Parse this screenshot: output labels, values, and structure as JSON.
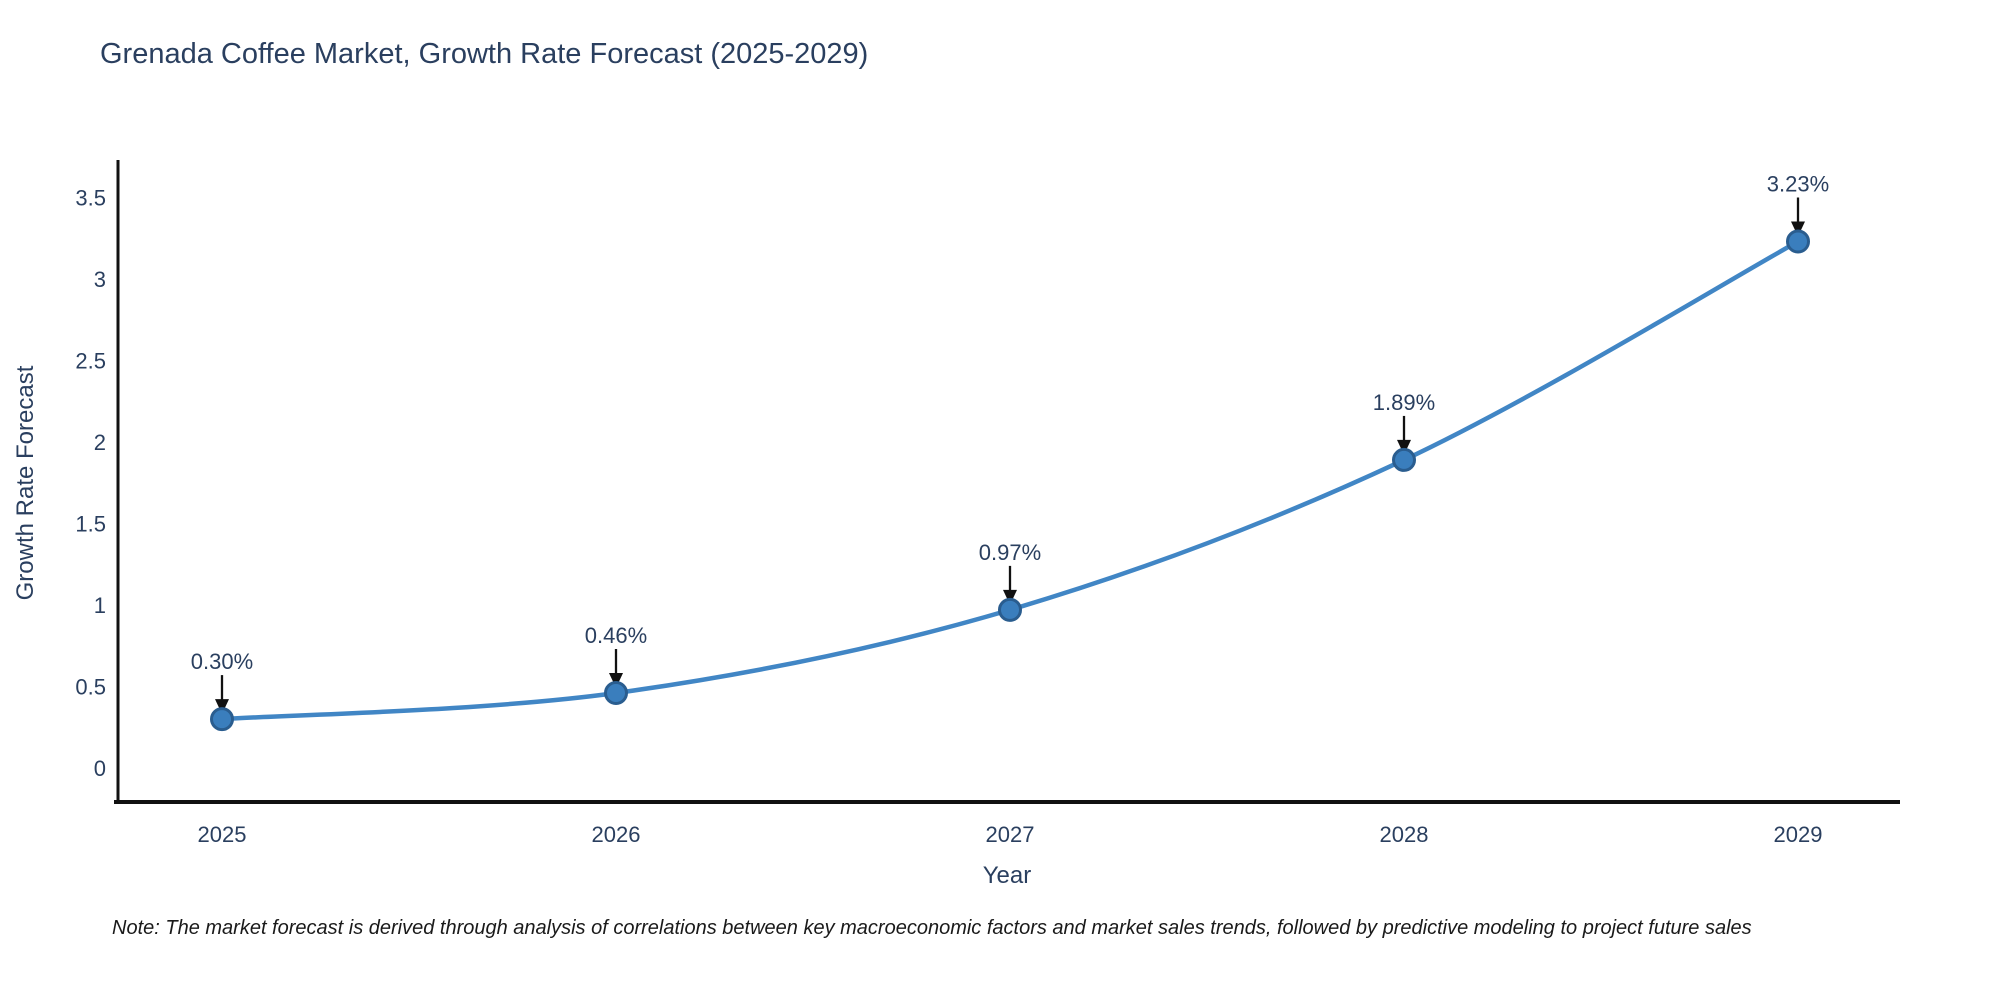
{
  "chart_data": {
    "type": "line",
    "title": "Grenada Coffee Market, Growth Rate Forecast (2025-2029)",
    "xlabel": "Year",
    "ylabel": "Growth Rate Forecast",
    "categories": [
      "2025",
      "2026",
      "2027",
      "2028",
      "2029"
    ],
    "series": [
      {
        "name": "Growth Rate Forecast",
        "values": [
          0.3,
          0.46,
          0.97,
          1.89,
          3.23
        ],
        "point_labels": [
          "0.30%",
          "0.46%",
          "0.97%",
          "1.89%",
          "3.23%"
        ]
      }
    ],
    "line_shape": "spline",
    "markers": true,
    "grid": false,
    "legend_position": "none",
    "ylim": [
      0,
      3.7
    ],
    "ytick_values": [
      0,
      0.5,
      1,
      1.5,
      2,
      2.5,
      3,
      3.5
    ],
    "ytick_labels": [
      "0",
      "0.5",
      "1",
      "1.5",
      "2",
      "2.5",
      "3",
      "3.5"
    ],
    "colors": {
      "line": "#4186c5",
      "marker_fill": "#3a7ebd",
      "marker_edge": "#2a5d8f",
      "axis_line": "#111111",
      "tick_text": "#2a3f5f",
      "annotation_text": "#2a3f5f",
      "annotation_arrow": "#111111",
      "background": "#ffffff"
    }
  },
  "footnote": "Note: The market forecast is derived through analysis of correlations between key macroeconomic factors and market sales trends, followed by predictive modeling to project future sales"
}
